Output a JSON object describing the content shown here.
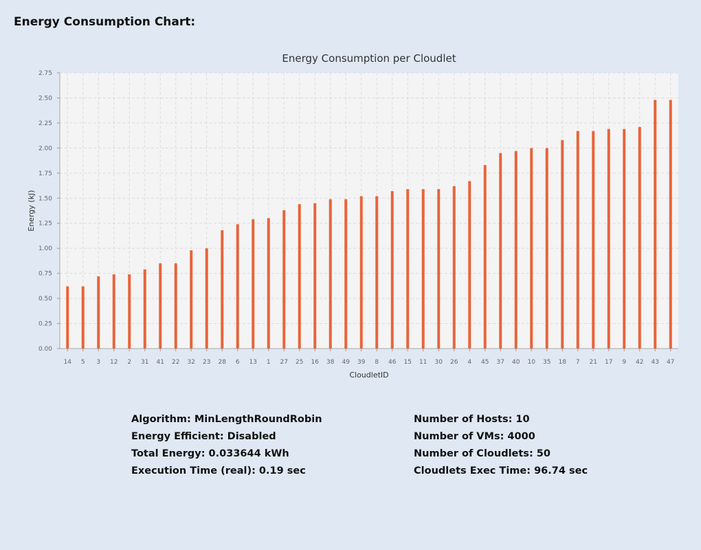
{
  "header": {
    "title": "Energy Consumption Chart:"
  },
  "chart_data": {
    "type": "bar",
    "title": "Energy Consumption per Cloudlet",
    "xlabel": "CloudletID",
    "ylabel": "Energy (kJ)",
    "ylim": [
      0,
      2.75
    ],
    "yticks": [
      "0.00",
      "0.25",
      "0.50",
      "0.75",
      "1.00",
      "1.25",
      "1.50",
      "1.75",
      "2.00",
      "2.25",
      "2.50",
      "2.75"
    ],
    "grid": true,
    "bar_color": "#e8643a",
    "categories": [
      "14",
      "5",
      "3",
      "12",
      "2",
      "31",
      "41",
      "22",
      "32",
      "23",
      "28",
      "6",
      "13",
      "1",
      "27",
      "25",
      "16",
      "38",
      "49",
      "39",
      "8",
      "46",
      "15",
      "11",
      "30",
      "26",
      "4",
      "45",
      "37",
      "40",
      "10",
      "35",
      "18",
      "7",
      "21",
      "17",
      "9",
      "42",
      "43",
      "47"
    ],
    "values": [
      0.62,
      0.62,
      0.72,
      0.74,
      0.74,
      0.79,
      0.85,
      0.85,
      0.98,
      1.0,
      1.18,
      1.24,
      1.29,
      1.3,
      1.38,
      1.44,
      1.45,
      1.49,
      1.49,
      1.52,
      1.52,
      1.57,
      1.59,
      1.59,
      1.59,
      1.62,
      1.67,
      1.83,
      1.95,
      1.97,
      2.0,
      2.0,
      2.08,
      2.17,
      2.17,
      2.19,
      2.19,
      2.21,
      2.48,
      2.48
    ]
  },
  "stats": {
    "left": [
      "Algorithm: MinLengthRoundRobin",
      "Energy Efficient: Disabled",
      "Total Energy: 0.033644 kWh",
      "Execution Time (real): 0.19 sec"
    ],
    "right": [
      "Number of Hosts: 10",
      "Number of VMs: 4000",
      "Number of Cloudlets: 50",
      "Cloudlets Exec Time: 96.74 sec"
    ]
  }
}
